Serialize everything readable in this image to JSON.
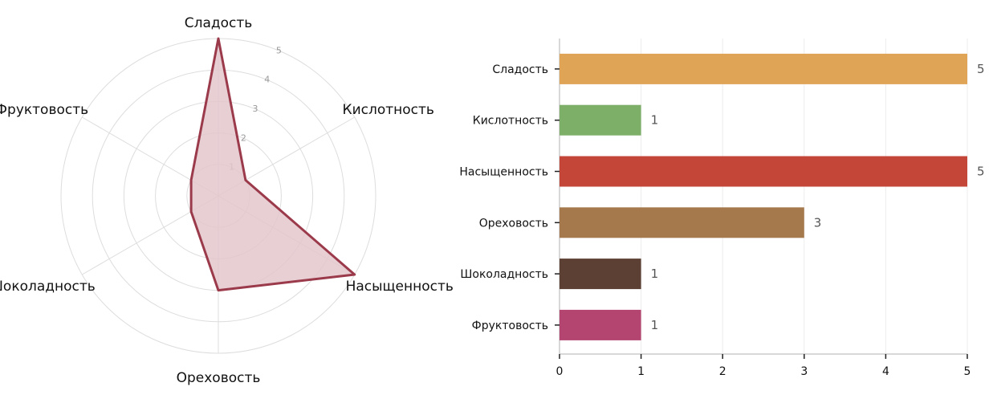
{
  "chart_data": [
    {
      "type": "radar",
      "axes": [
        "Сладость",
        "Кислотность",
        "Насыщенность",
        "Ореховость",
        "Шоколадность",
        "Фруктовость"
      ],
      "values": [
        5,
        1,
        5,
        3,
        1,
        1
      ],
      "rlim": [
        0,
        5
      ],
      "rticks": [
        "1",
        "2",
        "3",
        "4",
        "5"
      ],
      "colors": {
        "line": "#9b3a4a",
        "fill": "#e3c7cd",
        "grid": "#dddddd",
        "tick": "#999999"
      }
    },
    {
      "type": "bar",
      "orientation": "horizontal",
      "categories": [
        "Сладость",
        "Кислотность",
        "Насыщенность",
        "Ореховость",
        "Шоколадность",
        "Фруктовость"
      ],
      "values": [
        5,
        1,
        5,
        3,
        1,
        1
      ],
      "value_labels": [
        "5",
        "1",
        "5",
        "3",
        "1",
        "1"
      ],
      "xlim": [
        0,
        5
      ],
      "xticks": [
        "0",
        "1",
        "2",
        "3",
        "4",
        "5"
      ],
      "grid": true,
      "colors": [
        "#dfa456",
        "#7daf69",
        "#c44638",
        "#a6794c",
        "#5c4033",
        "#b34570"
      ]
    }
  ]
}
